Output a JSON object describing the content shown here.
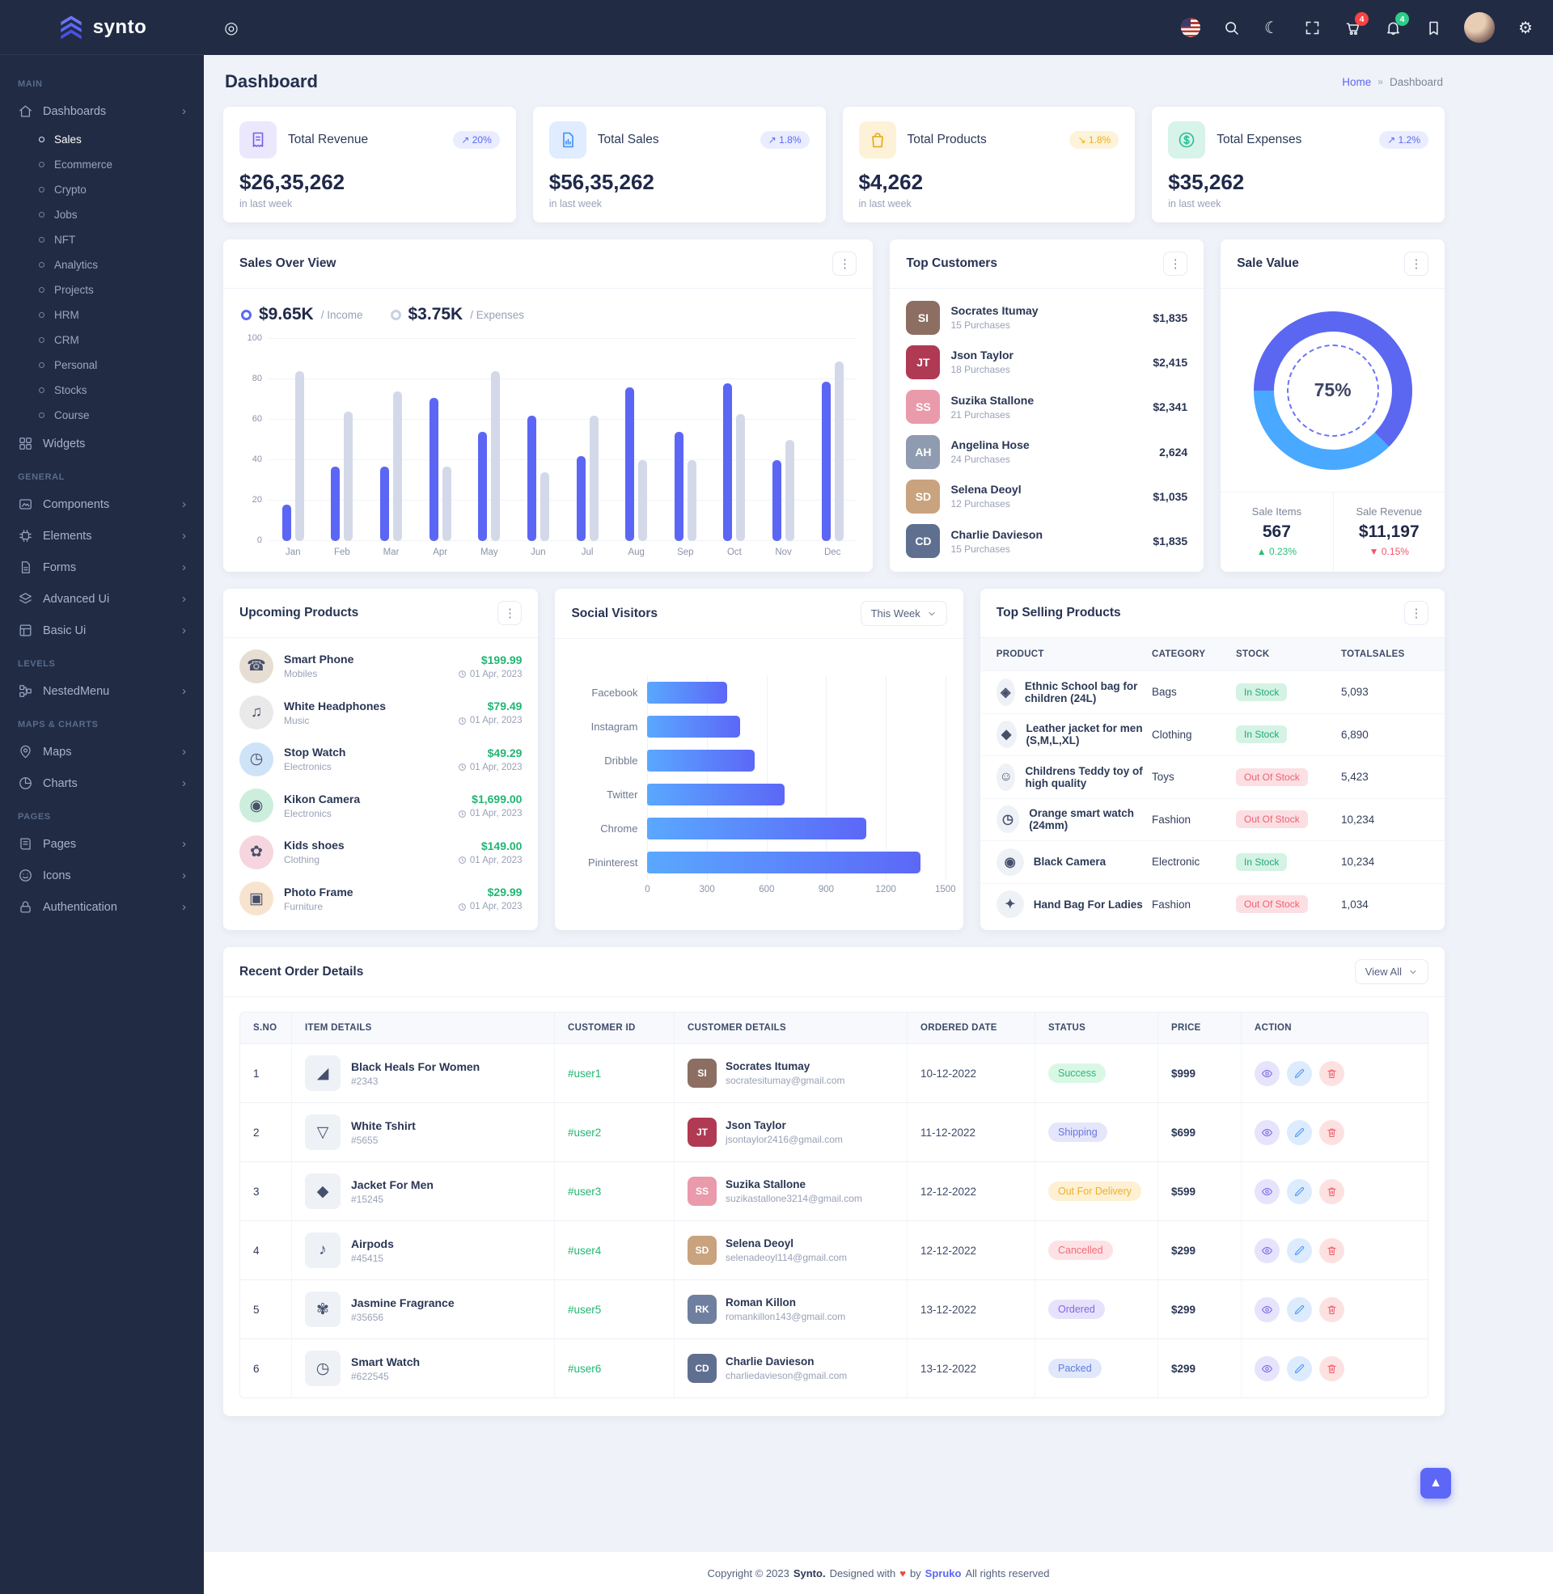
{
  "brand": {
    "name": "synto"
  },
  "header": {
    "cart_badge": "4",
    "bell_badge": "4"
  },
  "page": {
    "title": "Dashboard",
    "breadcrumb_home": "Home",
    "breadcrumb_sep": "»",
    "breadcrumb_current": "Dashboard"
  },
  "sidebar": {
    "sections": [
      {
        "label": "MAIN",
        "items": [
          {
            "label": "Dashboards",
            "icon": "home",
            "chevron": true,
            "expanded": true,
            "active_child": "Sales",
            "children": [
              "Sales",
              "Ecommerce",
              "Crypto",
              "Jobs",
              "NFT",
              "Analytics",
              "Projects",
              "HRM",
              "CRM",
              "Personal",
              "Stocks",
              "Course"
            ]
          },
          {
            "label": "Widgets",
            "icon": "widgets",
            "chevron": false
          }
        ]
      },
      {
        "label": "GENERAL",
        "items": [
          {
            "label": "Components",
            "icon": "components",
            "chevron": true
          },
          {
            "label": "Elements",
            "icon": "elements",
            "chevron": true
          },
          {
            "label": "Forms",
            "icon": "forms",
            "chevron": true
          },
          {
            "label": "Advanced Ui",
            "icon": "advanced",
            "chevron": true
          },
          {
            "label": "Basic Ui",
            "icon": "basic",
            "chevron": true
          }
        ]
      },
      {
        "label": "LEVELS",
        "items": [
          {
            "label": "NestedMenu",
            "icon": "nested",
            "chevron": true
          }
        ]
      },
      {
        "label": "MAPS & CHARTS",
        "items": [
          {
            "label": "Maps",
            "icon": "maps",
            "chevron": true
          },
          {
            "label": "Charts",
            "icon": "charts",
            "chevron": true
          }
        ]
      },
      {
        "label": "PAGES",
        "items": [
          {
            "label": "Pages",
            "icon": "pages",
            "chevron": true
          },
          {
            "label": "Icons",
            "icon": "icons",
            "chevron": true
          },
          {
            "label": "Authentication",
            "icon": "auth",
            "chevron": true
          }
        ]
      }
    ]
  },
  "stats": [
    {
      "title": "Total Revenue",
      "value": "$26,35,262",
      "note": "in last week",
      "badge": "20%",
      "arrow": "↗",
      "badge_style": "up-blue",
      "tile": "c-violet",
      "icon": "receipt"
    },
    {
      "title": "Total Sales",
      "value": "$56,35,262",
      "note": "in last week",
      "badge": "1.8%",
      "arrow": "↗",
      "badge_style": "up-blue",
      "tile": "c-blue",
      "icon": "report"
    },
    {
      "title": "Total Products",
      "value": "$4,262",
      "note": "in last week",
      "badge": "1.8%",
      "arrow": "↘",
      "badge_style": "down-yellow",
      "tile": "c-yellow",
      "icon": "bag"
    },
    {
      "title": "Total Expenses",
      "value": "$35,262",
      "note": "in last week",
      "badge": "1.2%",
      "arrow": "↗",
      "badge_style": "up-blue",
      "tile": "c-green",
      "icon": "dollar"
    }
  ],
  "sales_overview": {
    "title": "Sales Over View",
    "legend": [
      {
        "value": "$9.65K",
        "label": "/ Income"
      },
      {
        "value": "$3.75K",
        "label": "/ Expenses"
      }
    ]
  },
  "chart_data": [
    {
      "id": "sales-over-view",
      "type": "bar",
      "title": "Sales Over View",
      "categories": [
        "Jan",
        "Feb",
        "Mar",
        "Apr",
        "May",
        "Jun",
        "Jul",
        "Aug",
        "Sep",
        "Oct",
        "Nov",
        "Dec"
      ],
      "series": [
        {
          "name": "Income",
          "total_label": "$9.65K",
          "color": "#5b66f5",
          "values": [
            18,
            37,
            37,
            71,
            54,
            62,
            42,
            76,
            54,
            78,
            40,
            79
          ]
        },
        {
          "name": "Expenses",
          "total_label": "$3.75K",
          "color": "#d3d9e8",
          "values": [
            84,
            64,
            74,
            37,
            84,
            34,
            62,
            40,
            40,
            63,
            50,
            89
          ]
        }
      ],
      "ylabel": "",
      "xlabel": "",
      "ylim": [
        0,
        100
      ],
      "yticks": [
        0,
        20,
        40,
        60,
        80,
        100
      ],
      "grid": true,
      "legend_position": "top-left"
    },
    {
      "id": "social-visitors",
      "type": "bar",
      "orientation": "horizontal",
      "title": "Social Visitors",
      "categories": [
        "Facebook",
        "Instagram",
        "Dribble",
        "Twitter",
        "Chrome",
        "Pininterest"
      ],
      "values": [
        400,
        465,
        540,
        690,
        1100,
        1375
      ],
      "xlim": [
        0,
        1500
      ],
      "xticks": [
        0,
        300,
        600,
        900,
        1200,
        1500
      ],
      "grid": true,
      "bar_gradient": [
        "#5aa8ff",
        "#5c67f7"
      ]
    },
    {
      "id": "sale-value",
      "type": "pie",
      "title": "Sale Value",
      "center_label": "75%",
      "segments": [
        {
          "name": "primary",
          "value": 75,
          "color": "#5b67f1"
        },
        {
          "name": "secondary",
          "value": 25,
          "color": "#49a8ff"
        }
      ]
    }
  ],
  "top_customers": {
    "title": "Top Customers",
    "items": [
      {
        "name": "Socrates Itumay",
        "purchases": "15 Purchases",
        "amount": "$1,835",
        "initials": "SI",
        "color": "#8d6e63"
      },
      {
        "name": "Json Taylor",
        "purchases": "18 Purchases",
        "amount": "$2,415",
        "initials": "JT",
        "color": "#b03a53"
      },
      {
        "name": "Suzika Stallone",
        "purchases": "21 Purchases",
        "amount": "$2,341",
        "initials": "SS",
        "color": "#e99aab"
      },
      {
        "name": "Angelina Hose",
        "purchases": "24 Purchases",
        "amount": "2,624",
        "initials": "AH",
        "color": "#8e9bb0"
      },
      {
        "name": "Selena Deoyl",
        "purchases": "12 Purchases",
        "amount": "$1,035",
        "initials": "SD",
        "color": "#c9a27e"
      },
      {
        "name": "Charlie Davieson",
        "purchases": "15 Purchases",
        "amount": "$1,835",
        "initials": "CD",
        "color": "#5f6f8f"
      }
    ]
  },
  "sale_value": {
    "title": "Sale Value",
    "percent": "75%",
    "cells": [
      {
        "label": "Sale Items",
        "value": "567",
        "arrow": "▲",
        "delta": "0.23%",
        "dir": "up"
      },
      {
        "label": "Sale Revenue",
        "value": "$11,197",
        "arrow": "▼",
        "delta": "0.15%",
        "dir": "down"
      }
    ]
  },
  "upcoming_products": {
    "title": "Upcoming Products",
    "items": [
      {
        "name": "Smart Phone",
        "category": "Mobiles",
        "price": "$199.99",
        "date": "01 Apr, 2023",
        "glyph": "☎",
        "bg": "#e6ded2"
      },
      {
        "name": "White Headphones",
        "category": "Music",
        "price": "$79.49",
        "date": "01 Apr, 2023",
        "glyph": "♫",
        "bg": "#e9e9ea"
      },
      {
        "name": "Stop Watch",
        "category": "Electronics",
        "price": "$49.29",
        "date": "01 Apr, 2023",
        "glyph": "◷",
        "bg": "#cfe3f8"
      },
      {
        "name": "Kikon Camera",
        "category": "Electronics",
        "price": "$1,699.00",
        "date": "01 Apr, 2023",
        "glyph": "◉",
        "bg": "#cdeedd"
      },
      {
        "name": "Kids shoes",
        "category": "Clothing",
        "price": "$149.00",
        "date": "01 Apr, 2023",
        "glyph": "✿",
        "bg": "#f6d5de"
      },
      {
        "name": "Photo Frame",
        "category": "Furniture",
        "price": "$29.99",
        "date": "01 Apr, 2023",
        "glyph": "▣",
        "bg": "#f8e3cf"
      }
    ]
  },
  "social_visitors": {
    "title": "Social Visitors",
    "filter": "This Week"
  },
  "top_selling": {
    "title": "Top Selling Products",
    "columns": [
      "PRODUCT",
      "CATEGORY",
      "STOCK",
      "TOTALSALES"
    ],
    "rows": [
      {
        "product": "Ethnic School bag for children (24L)",
        "glyph": "◈",
        "category": "Bags",
        "stock": "In Stock",
        "stock_key": "in",
        "total": "5,093"
      },
      {
        "product": "Leather jacket for men (S,M,L,XL)",
        "glyph": "◆",
        "category": "Clothing",
        "stock": "In Stock",
        "stock_key": "in",
        "total": "6,890"
      },
      {
        "product": "Childrens Teddy toy of high quality",
        "glyph": "☺",
        "category": "Toys",
        "stock": "Out Of Stock",
        "stock_key": "out",
        "total": "5,423"
      },
      {
        "product": "Orange smart watch (24mm)",
        "glyph": "◷",
        "category": "Fashion",
        "stock": "Out Of Stock",
        "stock_key": "out",
        "total": "10,234"
      },
      {
        "product": "Black Camera",
        "glyph": "◉",
        "category": "Electronic",
        "stock": "In Stock",
        "stock_key": "in",
        "total": "10,234"
      },
      {
        "product": "Hand Bag For Ladies",
        "glyph": "✦",
        "category": "Fashion",
        "stock": "Out Of Stock",
        "stock_key": "out",
        "total": "1,034"
      }
    ]
  },
  "recent_orders": {
    "title": "Recent Order Details",
    "view_all": "View All",
    "columns": [
      "S.NO",
      "ITEM DETAILS",
      "CUSTOMER ID",
      "CUSTOMER DETAILS",
      "ORDERED DATE",
      "STATUS",
      "PRICE",
      "ACTION"
    ],
    "rows": [
      {
        "sno": "1",
        "item": "Black Heals For Women",
        "item_id": "#2343",
        "glyph": "◢",
        "cust_id": "#user1",
        "customer": "Socrates Itumay",
        "email": "socratesitumay@gmail.com",
        "initials": "SI",
        "av": "#8d6e63",
        "date": "10-12-2022",
        "status": "Success",
        "status_key": "success",
        "price": "$999"
      },
      {
        "sno": "2",
        "item": "White Tshirt",
        "item_id": "#5655",
        "glyph": "▽",
        "cust_id": "#user2",
        "customer": "Json Taylor",
        "email": "jsontaylor2416@gmail.com",
        "initials": "JT",
        "av": "#b03a53",
        "date": "11-12-2022",
        "status": "Shipping",
        "status_key": "shipping",
        "price": "$699"
      },
      {
        "sno": "3",
        "item": "Jacket For Men",
        "item_id": "#15245",
        "glyph": "◆",
        "cust_id": "#user3",
        "customer": "Suzika Stallone",
        "email": "suzikastallone3214@gmail.com",
        "initials": "SS",
        "av": "#e99aab",
        "date": "12-12-2022",
        "status": "Out For Delivery",
        "status_key": "delivery",
        "price": "$599"
      },
      {
        "sno": "4",
        "item": "Airpods",
        "item_id": "#45415",
        "glyph": "♪",
        "cust_id": "#user4",
        "customer": "Selena Deoyl",
        "email": "selenadeoyl114@gmail.com",
        "initials": "SD",
        "av": "#c9a27e",
        "date": "12-12-2022",
        "status": "Cancelled",
        "status_key": "cancelled",
        "price": "$299"
      },
      {
        "sno": "5",
        "item": "Jasmine Fragrance",
        "item_id": "#35656",
        "glyph": "✾",
        "cust_id": "#user5",
        "customer": "Roman Killon",
        "email": "romankillon143@gmail.com",
        "initials": "RK",
        "av": "#6f7f9f",
        "date": "13-12-2022",
        "status": "Ordered",
        "status_key": "ordered",
        "price": "$299"
      },
      {
        "sno": "6",
        "item": "Smart Watch",
        "item_id": "#622545",
        "glyph": "◷",
        "cust_id": "#user6",
        "customer": "Charlie Davieson",
        "email": "charliedavieson@gmail.com",
        "initials": "CD",
        "av": "#5f6f8f",
        "date": "13-12-2022",
        "status": "Packed",
        "status_key": "packed",
        "price": "$299"
      }
    ]
  },
  "footer": {
    "prefix": "Copyright © 2023",
    "brand": "Synto.",
    "mid": "Designed with",
    "heart": "♥",
    "by": "by",
    "brand2": "Spruko",
    "suffix": "All rights reserved"
  }
}
